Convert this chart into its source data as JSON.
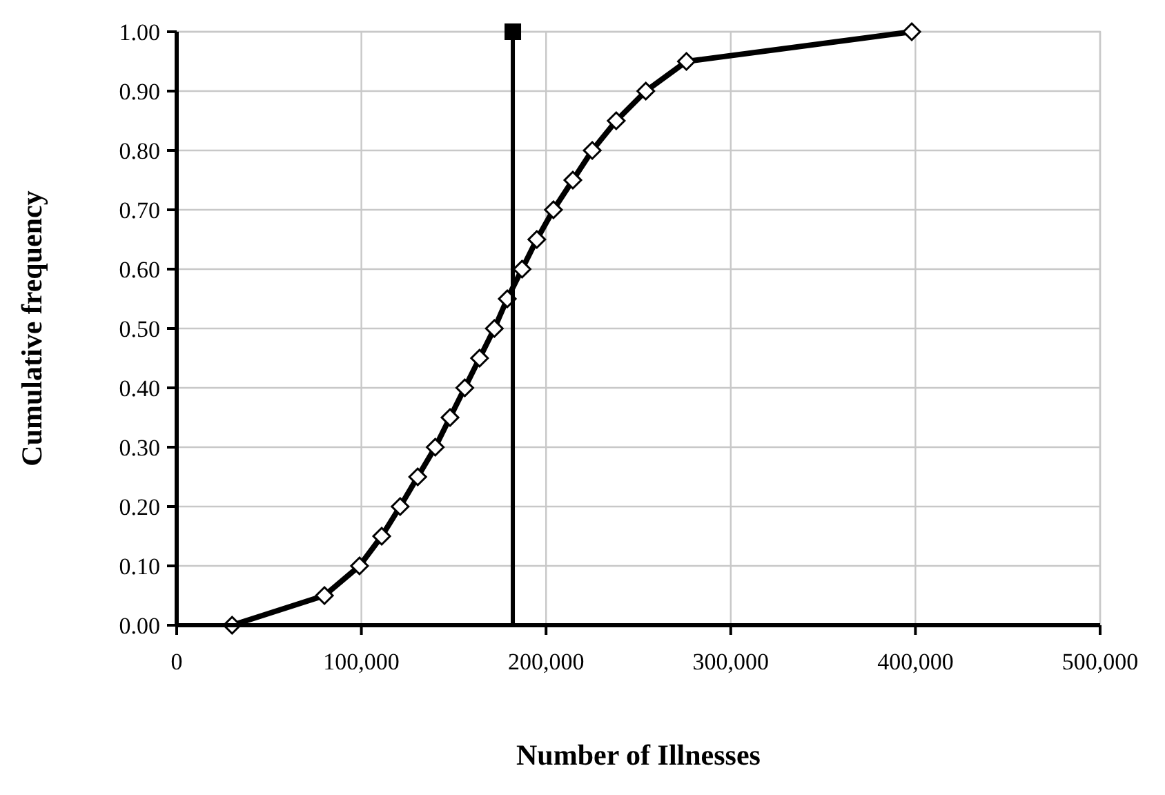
{
  "chart_data": {
    "type": "line",
    "xlabel": "Number of Illnesses",
    "ylabel": "Cumulative frequency",
    "xlim": [
      0,
      500000
    ],
    "xticks": [
      0,
      {
        "value": 100000,
        "label": "100,000"
      },
      {
        "value": 200000,
        "label": "200,000"
      },
      {
        "value": 300000,
        "label": "300,000"
      },
      {
        "value": 400000,
        "label": "400,000"
      },
      {
        "value": 500000,
        "label": "500,000"
      }
    ],
    "ylim": [
      0,
      1
    ],
    "yticks": [
      {
        "value": 0,
        "label": "0.00"
      },
      {
        "value": 0.1,
        "label": "0.10"
      },
      {
        "value": 0.2,
        "label": "0.20"
      },
      {
        "value": 0.3,
        "label": "0.30"
      },
      {
        "value": 0.4,
        "label": "0.40"
      },
      {
        "value": 0.5,
        "label": "0.50"
      },
      {
        "value": 0.6,
        "label": "0.60"
      },
      {
        "value": 0.7,
        "label": "0.70"
      },
      {
        "value": 0.8,
        "label": "0.80"
      },
      {
        "value": 0.9,
        "label": "0.90"
      },
      {
        "value": 1,
        "label": "1.00"
      }
    ],
    "grid": true,
    "series": [
      {
        "color": "#000000",
        "marker": "diamond",
        "x": [
          30000,
          80000,
          99000,
          111000,
          121000,
          130500,
          140000,
          148000,
          156000,
          164000,
          172000,
          179000,
          187000,
          195000,
          204000,
          214500,
          225000,
          238000,
          254000,
          276000,
          398000
        ],
        "values": [
          0,
          0.05,
          0.1,
          0.15,
          0.2,
          0.25,
          0.3,
          0.35,
          0.4,
          0.45,
          0.5,
          0.55,
          0.6,
          0.65,
          0.7,
          0.75,
          0.8,
          0.85,
          0.9,
          0.95,
          1
        ]
      },
      {
        "type": "line",
        "color": "#000000",
        "marker": "none",
        "x": [
          182000,
          182000
        ],
        "values": [
          0,
          1
        ]
      },
      {
        "type": "scatter",
        "color": "#000000",
        "marker": "square",
        "x": [
          182000
        ],
        "values": [
          1
        ]
      }
    ]
  }
}
